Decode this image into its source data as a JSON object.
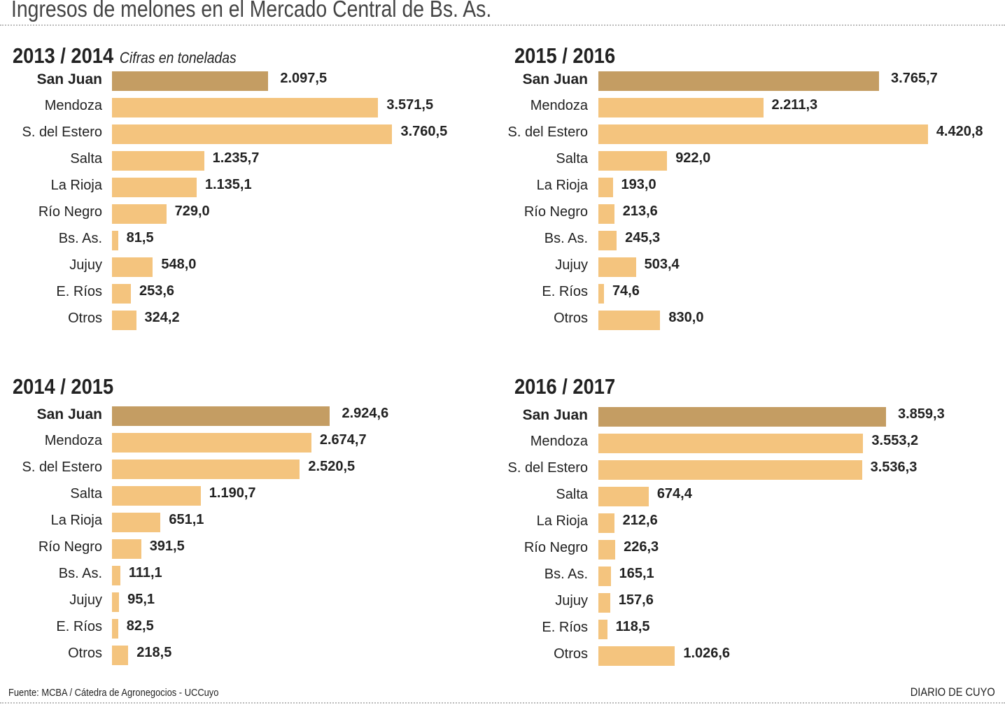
{
  "title": "Ingresos de melones en el Mercado Central de Bs. As.",
  "subtitle": "Cifras en toneladas",
  "footer": {
    "source": "Fuente: MCBA / Cátedra de Agronegocios - UCCuyo",
    "brand": "DIARIO DE CUYO"
  },
  "colors": {
    "highlight_bar": "#c49d63",
    "bar": "#f4c47e",
    "text": "#222222"
  },
  "chart_data": [
    {
      "type": "bar",
      "orientation": "horizontal",
      "title": "2013 / 2014",
      "unit": "toneladas",
      "categories": [
        "San Juan",
        "Mendoza",
        "S. del Estero",
        "Salta",
        "La Rioja",
        "Río Negro",
        "Bs. As.",
        "Jujuy",
        "E. Ríos",
        "Otros"
      ],
      "values": [
        2097.5,
        3571.5,
        3760.5,
        1235.7,
        1135.1,
        729.0,
        81.5,
        548.0,
        253.6,
        324.2
      ],
      "value_labels": [
        "2.097,5",
        "3.571,5",
        "3.760,5",
        "1.235,7",
        "1.135,1",
        "729,0",
        "81,5",
        "548,0",
        "253,6",
        "324,2"
      ],
      "highlight": "San Juan"
    },
    {
      "type": "bar",
      "orientation": "horizontal",
      "title": "2015 / 2016",
      "unit": "toneladas",
      "categories": [
        "San Juan",
        "Mendoza",
        "S. del Estero",
        "Salta",
        "La Rioja",
        "Río Negro",
        "Bs. As.",
        "Jujuy",
        "E. Ríos",
        "Otros"
      ],
      "values": [
        3765.7,
        2211.3,
        4420.8,
        922.0,
        193.0,
        213.6,
        245.3,
        503.4,
        74.6,
        830.0
      ],
      "value_labels": [
        "3.765,7",
        "2.211,3",
        "4.420,8",
        "922,0",
        "193,0",
        "213,6",
        "245,3",
        "503,4",
        "74,6",
        "830,0"
      ],
      "highlight": "San Juan"
    },
    {
      "type": "bar",
      "orientation": "horizontal",
      "title": "2014 / 2015",
      "unit": "toneladas",
      "categories": [
        "San Juan",
        "Mendoza",
        "S. del Estero",
        "Salta",
        "La Rioja",
        "Río Negro",
        "Bs. As.",
        "Jujuy",
        "E. Ríos",
        "Otros"
      ],
      "values": [
        2924.6,
        2674.7,
        2520.5,
        1190.7,
        651.1,
        391.5,
        111.1,
        95.1,
        82.5,
        218.5
      ],
      "value_labels": [
        "2.924,6",
        "2.674,7",
        "2.520,5",
        "1.190,7",
        "651,1",
        "391,5",
        "111,1",
        "95,1",
        "82,5",
        "218,5"
      ],
      "highlight": "San Juan"
    },
    {
      "type": "bar",
      "orientation": "horizontal",
      "title": "2016 / 2017",
      "unit": "toneladas",
      "categories": [
        "San Juan",
        "Mendoza",
        "S. del Estero",
        "Salta",
        "La Rioja",
        "Río Negro",
        "Bs. As.",
        "Jujuy",
        "E. Ríos",
        "Otros"
      ],
      "values": [
        3859.3,
        3553.2,
        3536.3,
        674.4,
        212.6,
        226.3,
        165.1,
        157.6,
        118.5,
        1026.6
      ],
      "value_labels": [
        "3.859,3",
        "3.553,2",
        "3.536,3",
        "674,4",
        "212,6",
        "226,3",
        "165,1",
        "157,6",
        "118,5",
        "1.026,6"
      ],
      "highlight": "San Juan"
    }
  ]
}
